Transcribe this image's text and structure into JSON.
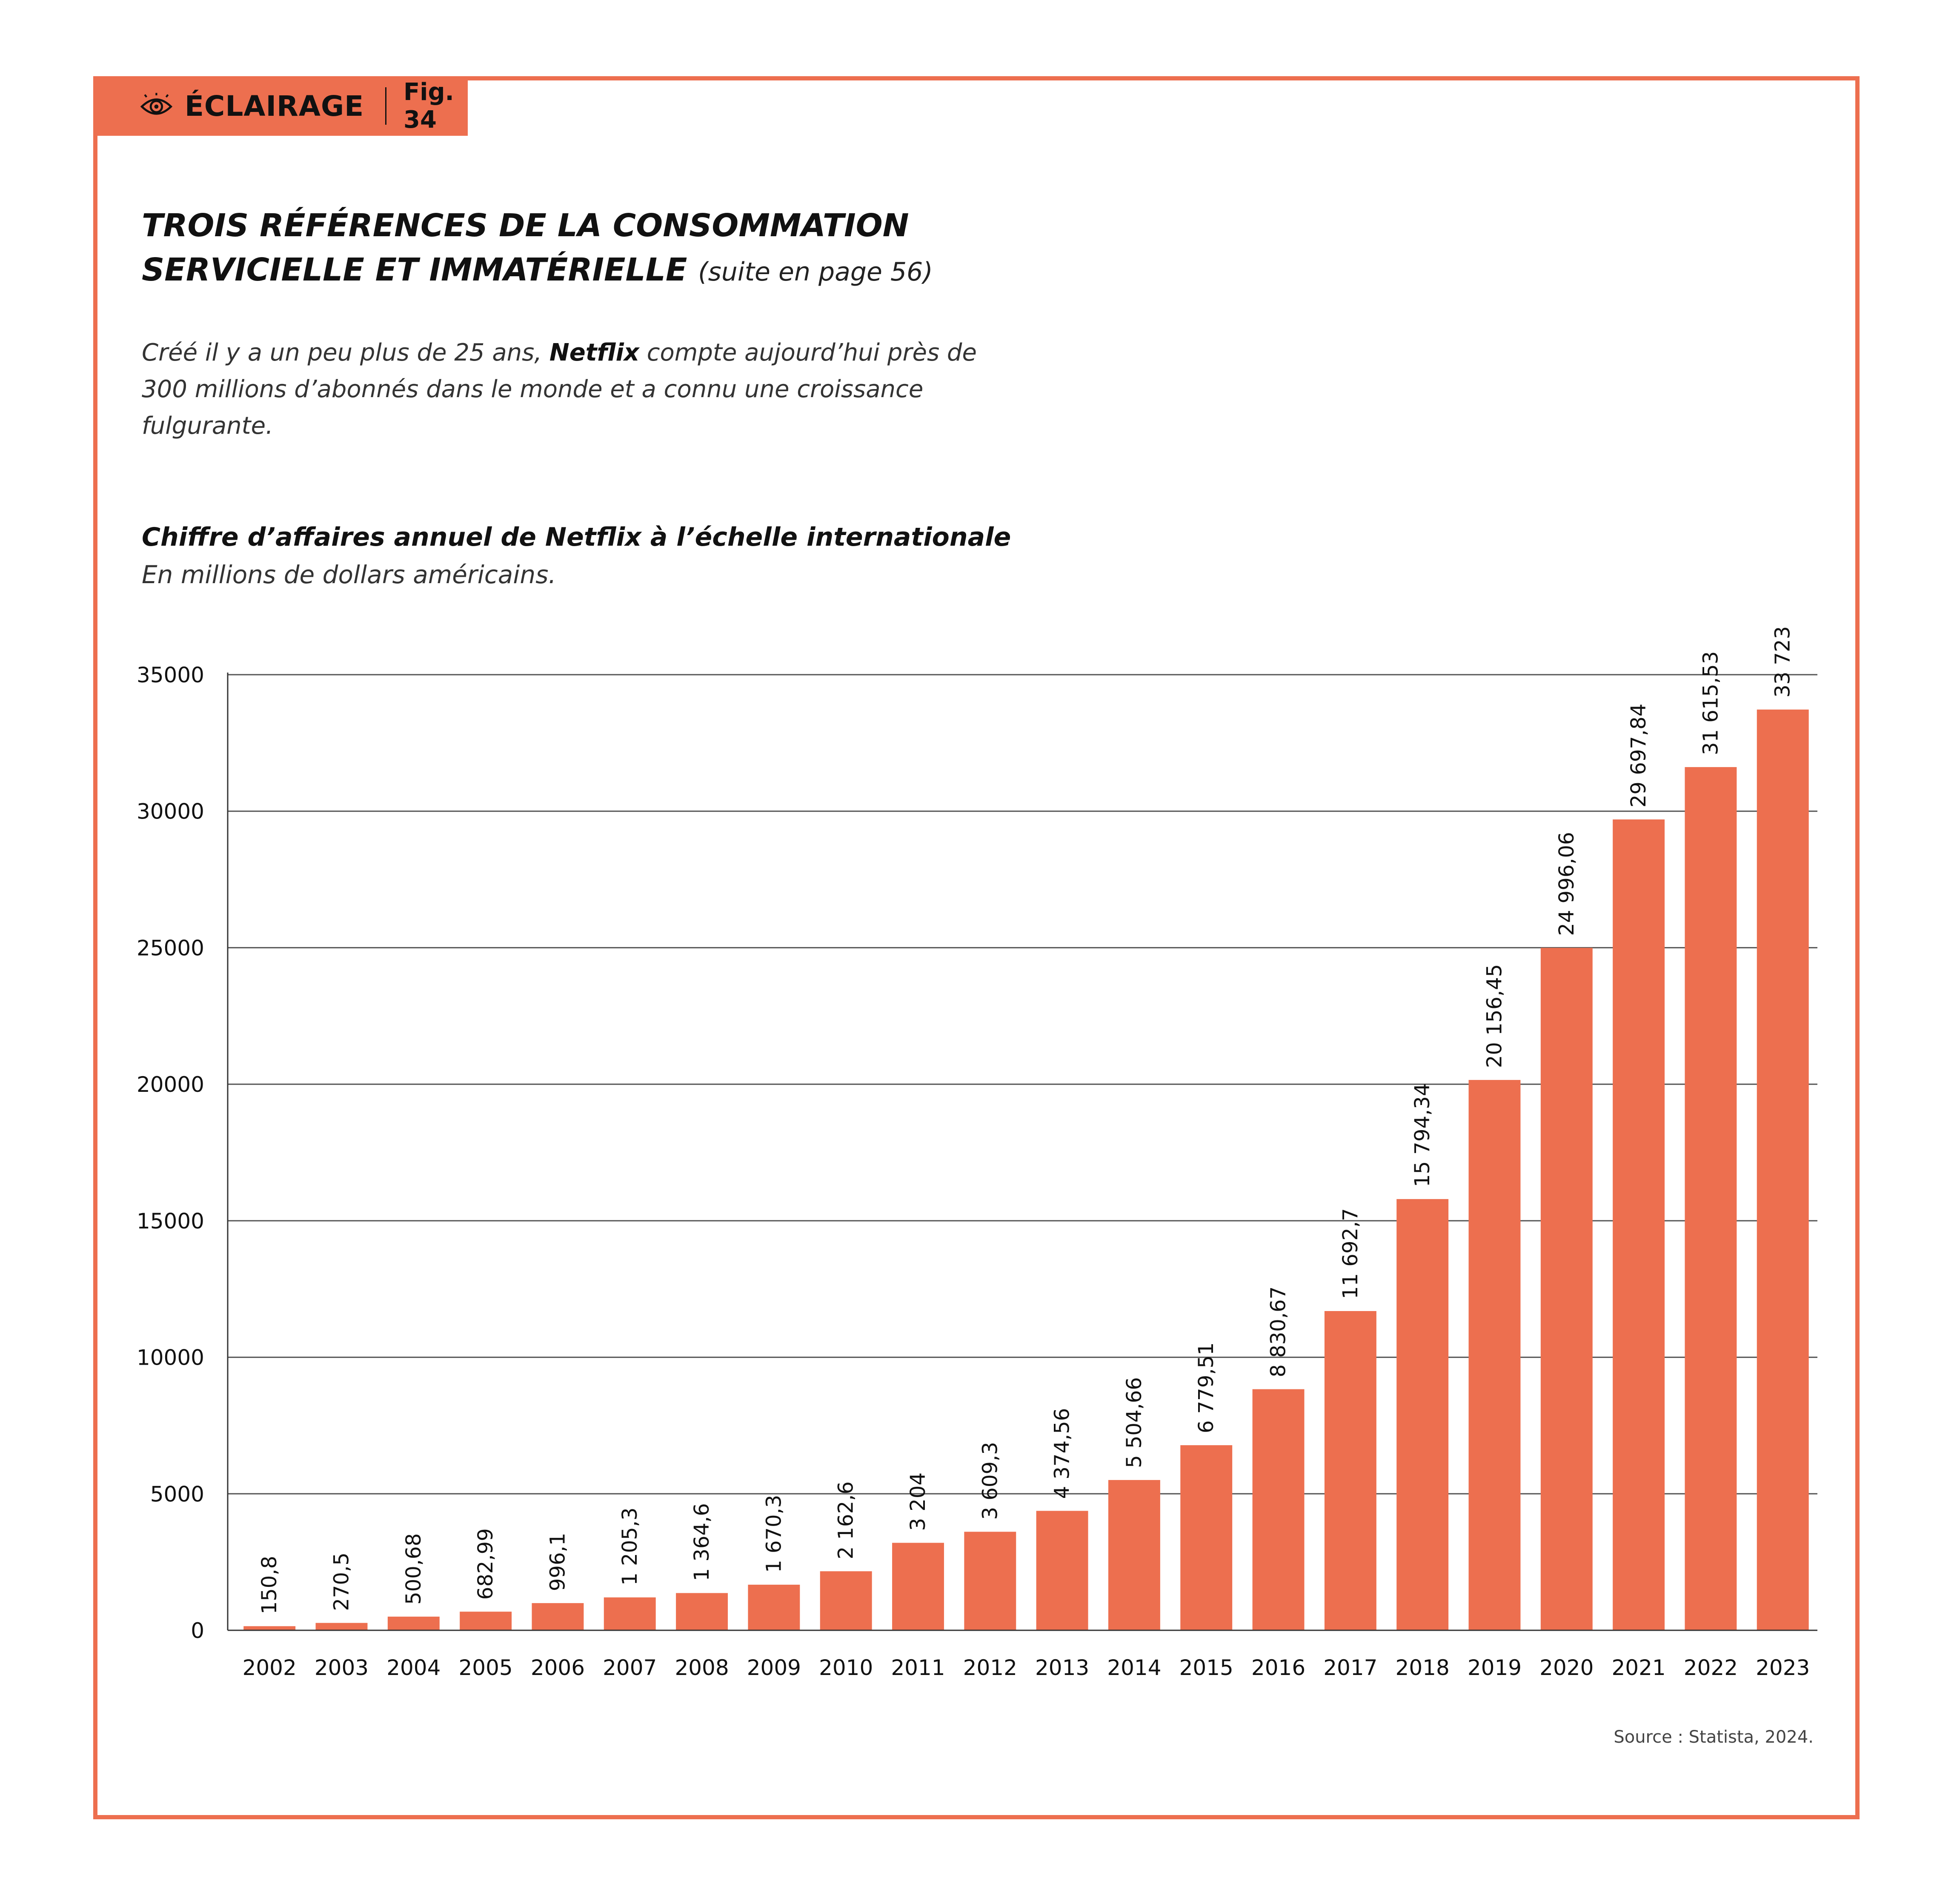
{
  "badge": {
    "label": "ÉCLAIRAGE",
    "figure": "Fig. 34",
    "icon": "eye-icon"
  },
  "heading": {
    "line1": "TROIS RÉFÉRENCES DE LA CONSOMMATION",
    "line2": "SERVICIELLE ET IMMATÉRIELLE",
    "suite": "(suite en page 56)"
  },
  "intro": {
    "before": "Créé il y a un peu plus de 25 ans, ",
    "brand": "Netflix",
    "after": " compte aujourd’hui près de 300 millions d’abonnés dans le monde et a connu une croissance fulgurante."
  },
  "source": "Source : Statista, 2024.",
  "colors": {
    "accent": "#ed6f4f",
    "bar": "#ed6f4f",
    "grid": "#555555"
  },
  "chart_data": {
    "type": "bar",
    "title": "Chiffre d’affaires annuel de Netflix à l’échelle internationale",
    "subtitle": "En millions de dollars américains.",
    "categories": [
      "2002",
      "2003",
      "2004",
      "2005",
      "2006",
      "2007",
      "2008",
      "2009",
      "2010",
      "2011",
      "2012",
      "2013",
      "2014",
      "2015",
      "2016",
      "2017",
      "2018",
      "2019",
      "2020",
      "2021",
      "2022",
      "2023"
    ],
    "values": [
      150.8,
      270.5,
      500.68,
      682.99,
      996.1,
      1205.3,
      1364.6,
      1670.3,
      2162.6,
      3204,
      3609.3,
      4374.56,
      5504.66,
      6779.51,
      8830.67,
      11692.7,
      15794.34,
      20156.45,
      24996.06,
      29697.84,
      31615.53,
      33723
    ],
    "data_labels": [
      "150,8",
      "270,5",
      "500,68",
      "682,99",
      "996,1",
      "1 205,3",
      "1 364,6",
      "1 670,3",
      "2 162,6",
      "3 204",
      "3 609,3",
      "4 374,56",
      "5 504,66",
      "6 779,51",
      "8 830,67",
      "11 692,7",
      "15 794,34",
      "20 156,45",
      "24 996,06",
      "29 697,84",
      "31 615,53",
      "33 723"
    ],
    "ylim": [
      0,
      35000
    ],
    "yticks": [
      0,
      5000,
      10000,
      15000,
      20000,
      25000,
      30000,
      35000
    ],
    "ytick_labels": [
      "0",
      "5000",
      "10000",
      "15000",
      "20000",
      "25000",
      "30000",
      "35000"
    ],
    "grid": true,
    "legend": "none"
  }
}
